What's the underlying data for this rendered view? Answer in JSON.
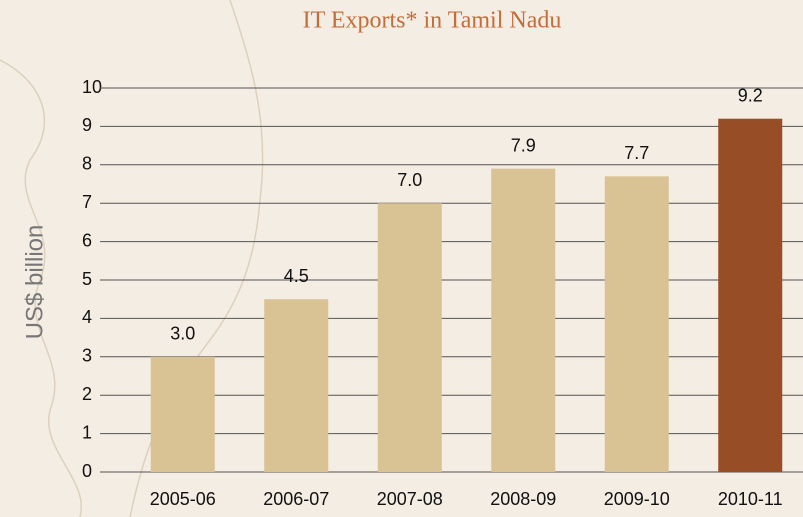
{
  "chart_data": {
    "type": "bar",
    "title": "IT Exports* in Tamil Nadu",
    "y_label": "US$ billion",
    "categories": [
      "2005-06",
      "2006-07",
      "2007-08",
      "2008-09",
      "2009-10",
      "2010-11"
    ],
    "values": [
      3.0,
      4.5,
      7.0,
      7.9,
      7.7,
      9.2
    ],
    "value_labels": [
      "3.0",
      "4.5",
      "7.0",
      "7.9",
      "7.7",
      "9.2"
    ],
    "colors": [
      "#d9c294",
      "#d9c294",
      "#d9c294",
      "#d9c294",
      "#d9c294",
      "#974d26"
    ],
    "ylim": [
      0,
      10
    ],
    "yticks": [
      0,
      1,
      2,
      3,
      4,
      5,
      6,
      7,
      8,
      9,
      10
    ],
    "grid": true
  }
}
